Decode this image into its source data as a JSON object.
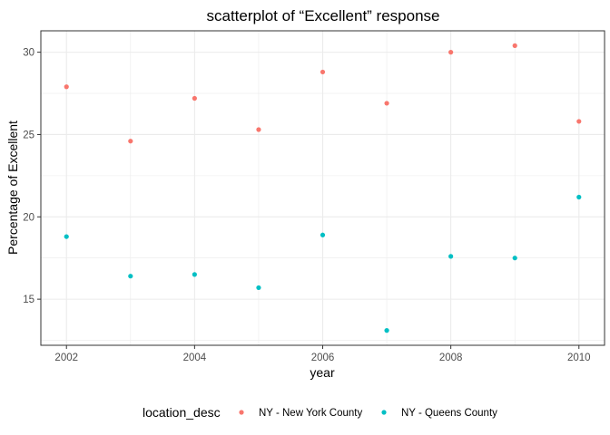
{
  "chart_data": {
    "type": "scatter",
    "title": "scatterplot of “Excellent” response",
    "xlabel": "year",
    "ylabel": "Percentage of Excellent",
    "xlim": [
      2001.6,
      2010.4
    ],
    "ylim": [
      12.2,
      31.3
    ],
    "x_ticks": [
      2002,
      2004,
      2006,
      2008,
      2010
    ],
    "y_ticks": [
      15,
      20,
      25,
      30
    ],
    "grid": true,
    "legend": {
      "title": "location_desc",
      "position": "bottom"
    },
    "series": [
      {
        "name": "NY - New York County",
        "color": "#F8766D",
        "points": [
          {
            "x": 2002,
            "y": 27.9
          },
          {
            "x": 2003,
            "y": 24.6
          },
          {
            "x": 2004,
            "y": 27.2
          },
          {
            "x": 2005,
            "y": 25.3
          },
          {
            "x": 2006,
            "y": 28.8
          },
          {
            "x": 2007,
            "y": 26.9
          },
          {
            "x": 2008,
            "y": 30.0
          },
          {
            "x": 2009,
            "y": 30.4
          },
          {
            "x": 2010,
            "y": 25.8
          }
        ]
      },
      {
        "name": "NY - Queens County",
        "color": "#00BFC4",
        "points": [
          {
            "x": 2002,
            "y": 18.8
          },
          {
            "x": 2003,
            "y": 16.4
          },
          {
            "x": 2004,
            "y": 16.5
          },
          {
            "x": 2005,
            "y": 15.7
          },
          {
            "x": 2006,
            "y": 18.9
          },
          {
            "x": 2007,
            "y": 13.1
          },
          {
            "x": 2008,
            "y": 17.6
          },
          {
            "x": 2009,
            "y": 17.5
          },
          {
            "x": 2010,
            "y": 21.2
          }
        ]
      }
    ]
  }
}
